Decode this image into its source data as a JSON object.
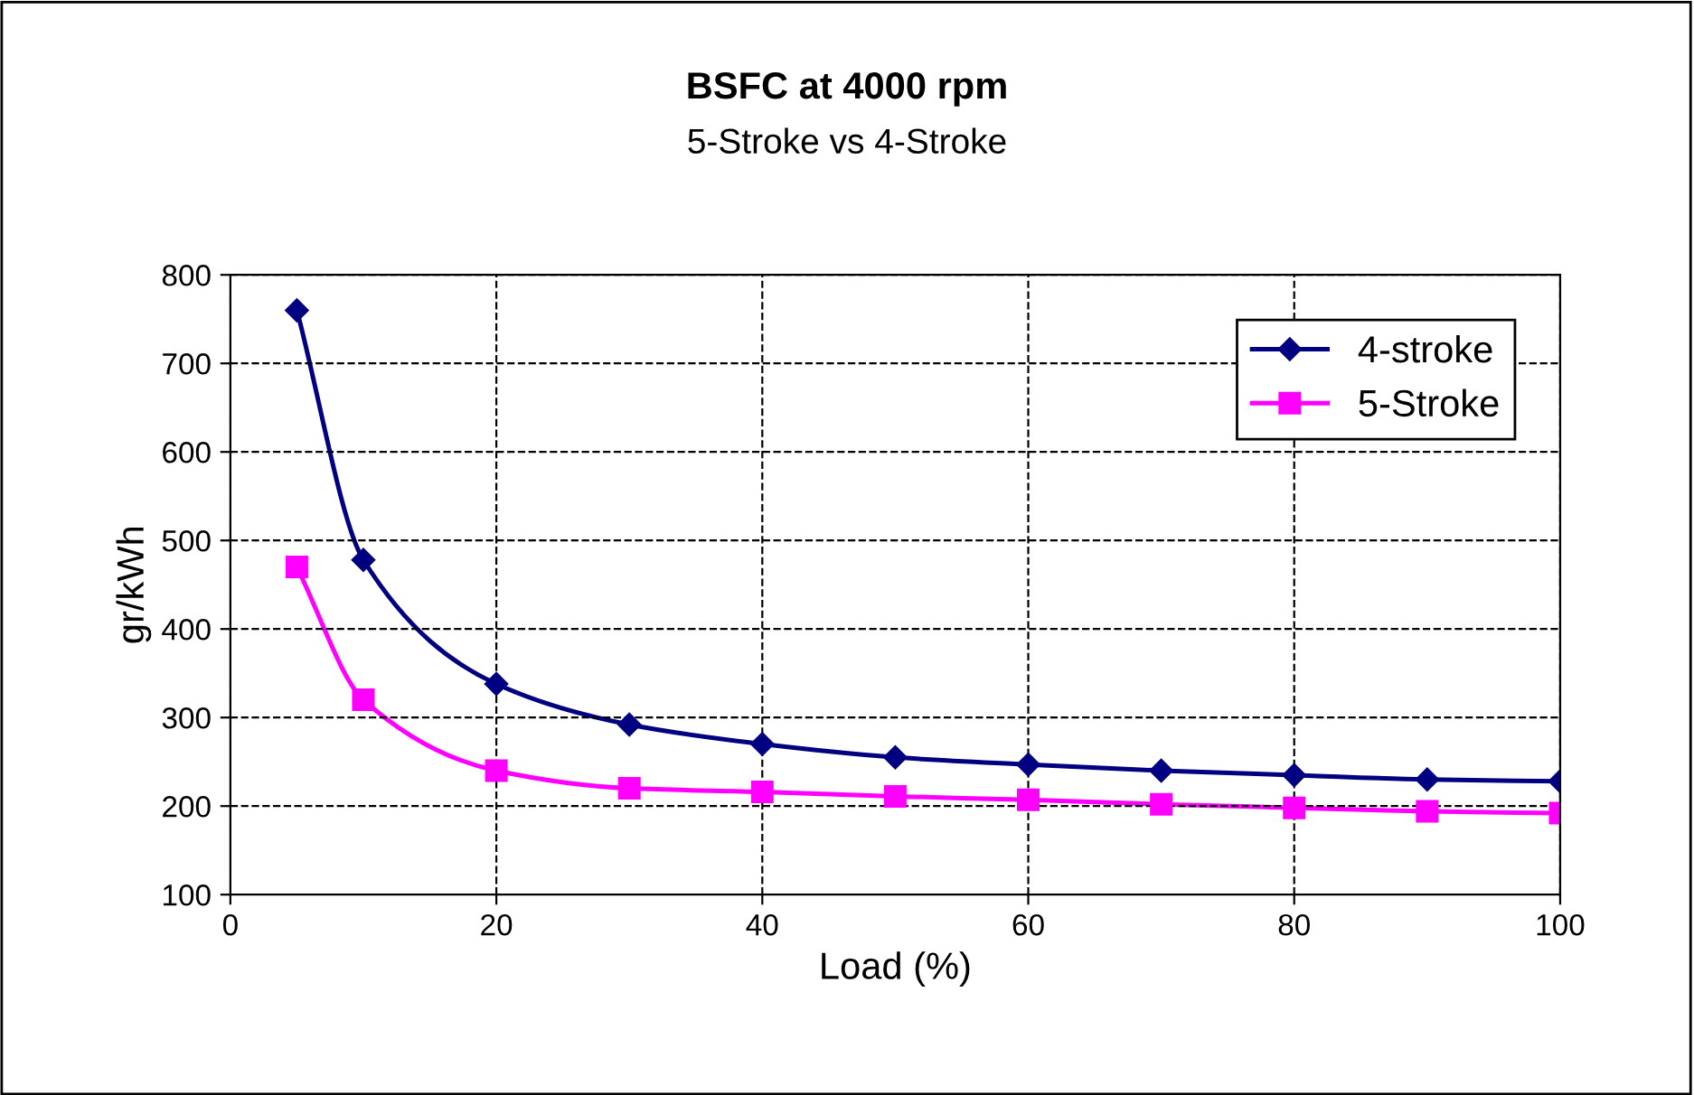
{
  "chart_data": {
    "type": "line",
    "title": "BSFC at 4000 rpm",
    "subtitle": "5-Stroke vs 4-Stroke",
    "xlabel": "Load (%)",
    "ylabel": "gr/kWh",
    "x": [
      5,
      10,
      20,
      30,
      40,
      50,
      60,
      70,
      80,
      90,
      100
    ],
    "series": [
      {
        "name": "4-stroke",
        "color": "#000080",
        "marker": "diamond",
        "values": [
          760,
          478,
          338,
          292,
          270,
          255,
          247,
          240,
          235,
          230,
          228
        ]
      },
      {
        "name": "5-Stroke",
        "color": "#ff00ff",
        "marker": "square",
        "values": [
          470,
          320,
          240,
          220,
          216,
          211,
          207,
          202,
          198,
          194,
          192
        ]
      }
    ],
    "xlim": [
      0,
      100
    ],
    "xticks": [
      0,
      20,
      40,
      60,
      80,
      100
    ],
    "ylim": [
      100,
      800
    ],
    "yticks": [
      100,
      200,
      300,
      400,
      500,
      600,
      700,
      800
    ],
    "grid": true,
    "legend": "top right",
    "line_style": "solid"
  }
}
